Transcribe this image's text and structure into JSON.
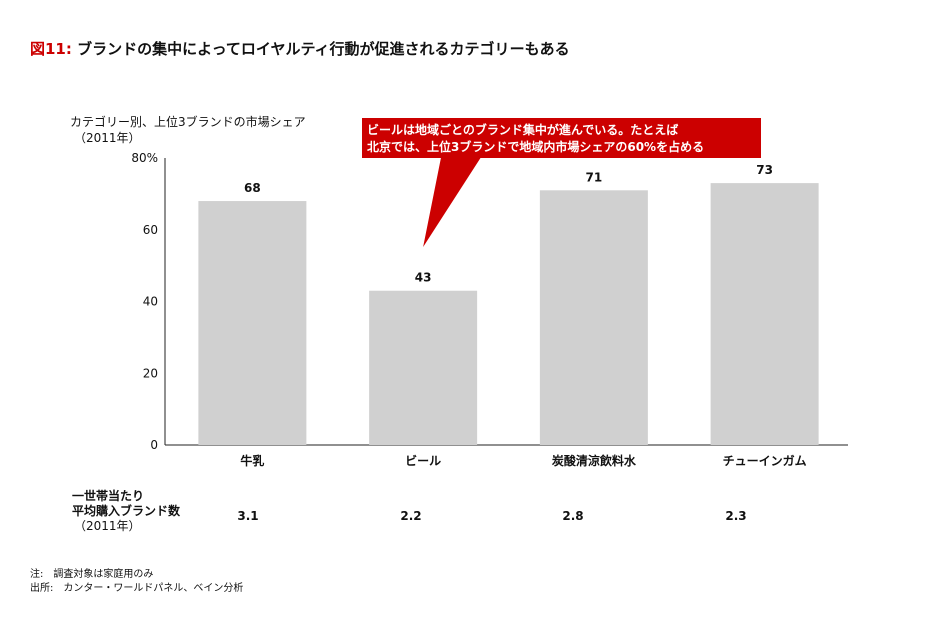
{
  "title": {
    "prefix": "図11:",
    "text": "ブランドの集中によってロイヤルティ行動が促進されるカテゴリーもある"
  },
  "chart_data": {
    "type": "bar",
    "ylabel_line1": "カテゴリー別、上位3ブランドの市場シェア",
    "ylabel_line2": "（2011年）",
    "categories": [
      "牛乳",
      "ビール",
      "炭酸清涼飲料水",
      "チューインガム"
    ],
    "values": [
      68,
      43,
      71,
      73
    ],
    "value_labels": [
      "68",
      "43",
      "71",
      "73"
    ],
    "y_ticks": [
      "0",
      "20",
      "40",
      "60",
      "80%"
    ],
    "ylim": [
      0,
      80
    ],
    "grid": false,
    "bar_color": "#d0d0d0",
    "annotation": {
      "line1": "ビールは地域ごとのブランド集中が進んでいる。たとえば",
      "line2": "北京では、上位3ブランドで地域内市場シェアの60%を占める",
      "color": "#cc0000",
      "points_to": "ビール"
    }
  },
  "avg_brands": {
    "label_line1": "一世帯当たり",
    "label_line2": "平均購入ブランド数",
    "label_line3": "（2011年）",
    "values": [
      "3.1",
      "2.2",
      "2.8",
      "2.3"
    ]
  },
  "notes": {
    "note": "注:　調査対象は家庭用のみ",
    "source": "出所:　カンター・ワールドパネル、ベイン分析"
  }
}
